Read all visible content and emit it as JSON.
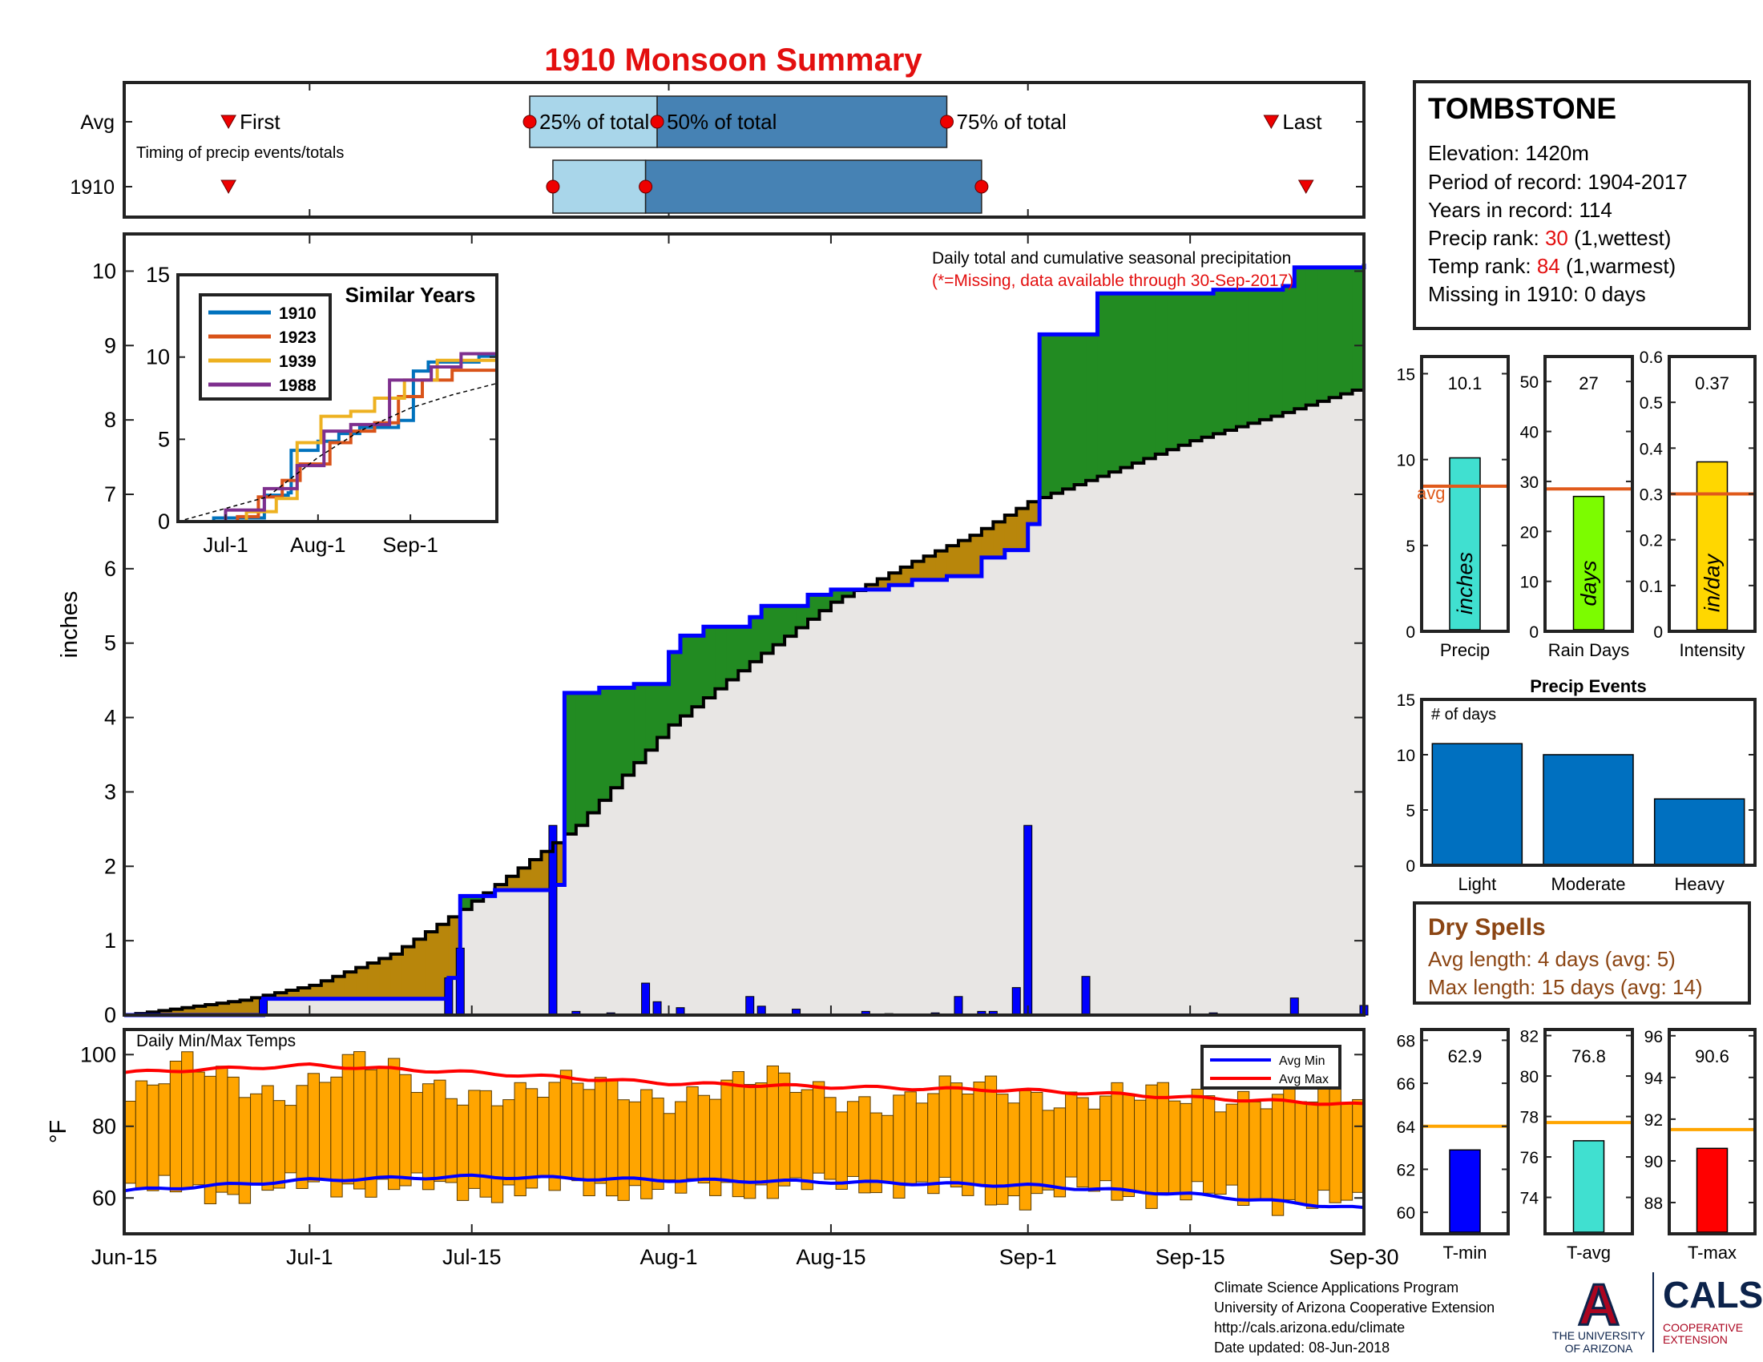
{
  "title": "1910 Monsoon Summary",
  "colors": {
    "title": "#e30f0f",
    "cum_line": "#0000ff",
    "avg_line": "#000000",
    "above_fill": "#228b22",
    "below_fill": "#b8860b",
    "base_fill": "#e8e6e4",
    "q_light": "#a9d6ea",
    "q_dark": "#4682b4",
    "marker": "#ee0000",
    "temp_bar": "#ffa500",
    "avg_bar_line": "#e05a1b",
    "temp_avg_line": "#ffa500",
    "precip_bar": "#40e0d0",
    "rain_bar": "#7cfc00",
    "int_bar": "#ffd700",
    "tmin_bar": "#0000ff",
    "tavg_bar": "#40e0d0",
    "tmax_bar": "#ff0000",
    "events_bar": "#0070c0",
    "dry_text": "#8b4513",
    "rank_red": "#e30f0f"
  },
  "timing": {
    "rows": [
      "Avg",
      "1910"
    ],
    "note": "Timing of precip events/totals",
    "labels": {
      "first": "First",
      "p25": "25% of total",
      "p50": "50% of total",
      "p75": "75% of total",
      "last": "Last"
    },
    "avg": {
      "first": "2023-06-24",
      "p25": "2023-07-20",
      "p50": "2023-07-31",
      "p75": "2023-08-25",
      "last": "2023-09-22"
    },
    "year": {
      "first": "2023-06-24",
      "p25": "2023-07-22",
      "p50": "2023-07-30",
      "p75": "2023-08-28",
      "last": "2023-09-25"
    }
  },
  "chart_data": [
    {
      "type": "line",
      "id": "cumulative_precip",
      "annotation": "Daily total and cumulative seasonal precipitation",
      "annotation2": "(*=Missing, data available through 30-Sep-2017)",
      "ylabel": "inches",
      "ylim": [
        0,
        10.5
      ],
      "yticks": [
        0,
        1,
        2,
        3,
        4,
        5,
        6,
        7,
        8,
        9,
        10
      ],
      "xticks": [
        {
          "label": "Jun-15",
          "date": "2023-06-15"
        },
        {
          "label": "Jul-1",
          "date": "2023-07-01"
        },
        {
          "label": "Jul-15",
          "date": "2023-07-15"
        },
        {
          "label": "Aug-1",
          "date": "2023-08-01"
        },
        {
          "label": "Aug-15",
          "date": "2023-08-15"
        },
        {
          "label": "Sep-1",
          "date": "2023-09-01"
        },
        {
          "label": "Sep-15",
          "date": "2023-09-15"
        },
        {
          "label": "Sep-30",
          "date": "2023-09-30"
        }
      ],
      "daily_precip": [
        {
          "date": "2023-06-27",
          "value": 0.22
        },
        {
          "date": "2023-07-13",
          "value": 0.5
        },
        {
          "date": "2023-07-14",
          "value": 0.9
        },
        {
          "date": "2023-07-22",
          "value": 2.55
        },
        {
          "date": "2023-07-24",
          "value": 0.05
        },
        {
          "date": "2023-07-27",
          "value": 0.03
        },
        {
          "date": "2023-07-30",
          "value": 0.43
        },
        {
          "date": "2023-07-31",
          "value": 0.18
        },
        {
          "date": "2023-08-02",
          "value": 0.1
        },
        {
          "date": "2023-08-08",
          "value": 0.25
        },
        {
          "date": "2023-08-09",
          "value": 0.12
        },
        {
          "date": "2023-08-12",
          "value": 0.08
        },
        {
          "date": "2023-08-18",
          "value": 0.05
        },
        {
          "date": "2023-08-20",
          "value": 0.02
        },
        {
          "date": "2023-08-24",
          "value": 0.03
        },
        {
          "date": "2023-08-26",
          "value": 0.25
        },
        {
          "date": "2023-08-28",
          "value": 0.05
        },
        {
          "date": "2023-08-29",
          "value": 0.05
        },
        {
          "date": "2023-08-31",
          "value": 0.37
        },
        {
          "date": "2023-09-01",
          "value": 2.55
        },
        {
          "date": "2023-09-06",
          "value": 0.52
        },
        {
          "date": "2023-09-17",
          "value": 0.03
        },
        {
          "date": "2023-09-24",
          "value": 0.23
        },
        {
          "date": "2023-09-30",
          "value": 0.13
        }
      ],
      "cumulative_1910": [
        {
          "date": "2023-06-15",
          "value": 0
        },
        {
          "date": "2023-06-27",
          "value": 0.22
        },
        {
          "date": "2023-07-13",
          "value": 0.5
        },
        {
          "date": "2023-07-14",
          "value": 1.6
        },
        {
          "date": "2023-07-17",
          "value": 1.68
        },
        {
          "date": "2023-07-22",
          "value": 1.75
        },
        {
          "date": "2023-07-23",
          "value": 4.33
        },
        {
          "date": "2023-07-26",
          "value": 4.4
        },
        {
          "date": "2023-07-29",
          "value": 4.45
        },
        {
          "date": "2023-08-01",
          "value": 4.88
        },
        {
          "date": "2023-08-02",
          "value": 5.1
        },
        {
          "date": "2023-08-04",
          "value": 5.22
        },
        {
          "date": "2023-08-08",
          "value": 5.35
        },
        {
          "date": "2023-08-09",
          "value": 5.5
        },
        {
          "date": "2023-08-13",
          "value": 5.65
        },
        {
          "date": "2023-08-15",
          "value": 5.72
        },
        {
          "date": "2023-08-20",
          "value": 5.78
        },
        {
          "date": "2023-08-22",
          "value": 5.85
        },
        {
          "date": "2023-08-25",
          "value": 5.9
        },
        {
          "date": "2023-08-28",
          "value": 6.15
        },
        {
          "date": "2023-08-30",
          "value": 6.25
        },
        {
          "date": "2023-09-01",
          "value": 6.6
        },
        {
          "date": "2023-09-02",
          "value": 9.15
        },
        {
          "date": "2023-09-07",
          "value": 9.7
        },
        {
          "date": "2023-09-17",
          "value": 9.75
        },
        {
          "date": "2023-09-23",
          "value": 9.8
        },
        {
          "date": "2023-09-24",
          "value": 10.05
        },
        {
          "date": "2023-09-30",
          "value": 10.1
        }
      ],
      "cumulative_avg": [
        {
          "date": "2023-06-15",
          "value": 0
        },
        {
          "date": "2023-06-25",
          "value": 0.2
        },
        {
          "date": "2023-07-01",
          "value": 0.4
        },
        {
          "date": "2023-07-08",
          "value": 0.82
        },
        {
          "date": "2023-07-14",
          "value": 1.42
        },
        {
          "date": "2023-07-21",
          "value": 2.2
        },
        {
          "date": "2023-07-24",
          "value": 2.55
        },
        {
          "date": "2023-08-01",
          "value": 3.9
        },
        {
          "date": "2023-08-08",
          "value": 4.75
        },
        {
          "date": "2023-08-15",
          "value": 5.55
        },
        {
          "date": "2023-08-22",
          "value": 6.1
        },
        {
          "date": "2023-08-27",
          "value": 6.45
        },
        {
          "date": "2023-09-01",
          "value": 6.9
        },
        {
          "date": "2023-09-08",
          "value": 7.3
        },
        {
          "date": "2023-09-15",
          "value": 7.72
        },
        {
          "date": "2023-09-22",
          "value": 8.05
        },
        {
          "date": "2023-09-30",
          "value": 8.45
        }
      ]
    },
    {
      "type": "line",
      "id": "similar_years",
      "title": "Similar Years",
      "ylim": [
        0,
        15
      ],
      "yticks": [
        0,
        5,
        10,
        15
      ],
      "xticks": [
        {
          "label": "Jul-1",
          "date": "2023-07-01"
        },
        {
          "label": "Aug-1",
          "date": "2023-08-01"
        },
        {
          "label": "Sep-1",
          "date": "2023-09-01"
        }
      ],
      "xlim": [
        "2023-06-15",
        "2023-09-30"
      ],
      "series": [
        {
          "name": "1910",
          "color": "#0072bd",
          "points": [
            [
              "2023-06-15",
              0
            ],
            [
              "2023-06-27",
              0.22
            ],
            [
              "2023-07-14",
              1.6
            ],
            [
              "2023-07-22",
              1.75
            ],
            [
              "2023-07-23",
              4.33
            ],
            [
              "2023-08-01",
              4.88
            ],
            [
              "2023-08-08",
              5.35
            ],
            [
              "2023-08-15",
              5.72
            ],
            [
              "2023-08-28",
              6.15
            ],
            [
              "2023-09-02",
              9.15
            ],
            [
              "2023-09-07",
              9.7
            ],
            [
              "2023-09-24",
              10.05
            ],
            [
              "2023-09-30",
              10.1
            ]
          ]
        },
        {
          "name": "1923",
          "color": "#d95319",
          "points": [
            [
              "2023-06-15",
              0
            ],
            [
              "2023-07-05",
              0.3
            ],
            [
              "2023-07-12",
              1.5
            ],
            [
              "2023-07-20",
              2.5
            ],
            [
              "2023-07-26",
              3.5
            ],
            [
              "2023-08-05",
              4.8
            ],
            [
              "2023-08-12",
              5.5
            ],
            [
              "2023-08-20",
              6.0
            ],
            [
              "2023-08-28",
              7.6
            ],
            [
              "2023-09-05",
              8.6
            ],
            [
              "2023-09-15",
              9.2
            ],
            [
              "2023-09-30",
              9.8
            ]
          ]
        },
        {
          "name": "1939",
          "color": "#edb120",
          "points": [
            [
              "2023-06-15",
              0
            ],
            [
              "2023-07-08",
              0.6
            ],
            [
              "2023-07-18",
              1.4
            ],
            [
              "2023-07-25",
              4.8
            ],
            [
              "2023-08-02",
              6.4
            ],
            [
              "2023-08-12",
              6.7
            ],
            [
              "2023-08-20",
              7.5
            ],
            [
              "2023-08-30",
              8.6
            ],
            [
              "2023-09-10",
              9.8
            ],
            [
              "2023-09-30",
              10.6
            ]
          ]
        },
        {
          "name": "1988",
          "color": "#7e2f8e",
          "points": [
            [
              "2023-06-15",
              0
            ],
            [
              "2023-07-01",
              0.7
            ],
            [
              "2023-07-14",
              2.0
            ],
            [
              "2023-07-25",
              3.4
            ],
            [
              "2023-08-03",
              5.5
            ],
            [
              "2023-08-12",
              5.9
            ],
            [
              "2023-08-25",
              8.6
            ],
            [
              "2023-09-08",
              9.4
            ],
            [
              "2023-09-18",
              10.2
            ],
            [
              "2023-09-30",
              10.4
            ]
          ]
        },
        {
          "name": "",
          "color": "#000000",
          "dashed": true,
          "points": [
            [
              "2023-06-15",
              0
            ],
            [
              "2023-07-15",
              1.5
            ],
            [
              "2023-08-01",
              3.9
            ],
            [
              "2023-08-15",
              5.5
            ],
            [
              "2023-09-01",
              6.9
            ],
            [
              "2023-09-15",
              7.7
            ],
            [
              "2023-09-30",
              8.4
            ]
          ]
        }
      ]
    },
    {
      "type": "bar",
      "id": "daily_temps",
      "label": "Daily Min/Max Temps",
      "ylabel": "°F",
      "ylim": [
        50,
        107
      ],
      "yticks": [
        60,
        80,
        100
      ],
      "legend": [
        "Avg Min",
        "Avg Max"
      ],
      "legend_position": "top-right",
      "max_curve": [
        [
          "2023-06-15",
          95
        ],
        [
          "2023-07-01",
          97
        ],
        [
          "2023-07-15",
          95
        ],
        [
          "2023-08-01",
          92
        ],
        [
          "2023-08-15",
          91
        ],
        [
          "2023-09-01",
          90
        ],
        [
          "2023-09-15",
          88
        ],
        [
          "2023-09-30",
          86
        ]
      ],
      "min_curve": [
        [
          "2023-06-15",
          62
        ],
        [
          "2023-07-01",
          65
        ],
        [
          "2023-07-15",
          66
        ],
        [
          "2023-08-01",
          65
        ],
        [
          "2023-08-15",
          64.5
        ],
        [
          "2023-09-01",
          63.5
        ],
        [
          "2023-09-15",
          61
        ],
        [
          "2023-09-30",
          57
        ]
      ],
      "max_keys": [
        [
          "2023-06-15",
          87
        ],
        [
          "2023-06-20",
          96
        ],
        [
          "2023-06-28",
          90
        ],
        [
          "2023-07-05",
          97
        ],
        [
          "2023-07-10",
          92
        ],
        [
          "2023-07-20",
          89
        ],
        [
          "2023-07-25",
          91
        ],
        [
          "2023-08-01",
          89
        ],
        [
          "2023-08-10",
          92
        ],
        [
          "2023-08-20",
          87
        ],
        [
          "2023-08-28",
          90
        ],
        [
          "2023-09-05",
          89
        ],
        [
          "2023-09-15",
          87
        ],
        [
          "2023-09-22",
          90
        ],
        [
          "2023-09-30",
          86
        ]
      ],
      "min_keys": [
        [
          "2023-06-15",
          62
        ],
        [
          "2023-06-25",
          62
        ],
        [
          "2023-07-05",
          64
        ],
        [
          "2023-07-15",
          62
        ],
        [
          "2023-07-25",
          63
        ],
        [
          "2023-08-01",
          62
        ],
        [
          "2023-08-10",
          63
        ],
        [
          "2023-08-20",
          64
        ],
        [
          "2023-08-30",
          60
        ],
        [
          "2023-09-05",
          62
        ],
        [
          "2023-09-15",
          61
        ],
        [
          "2023-09-30",
          58
        ]
      ]
    },
    {
      "type": "bar",
      "id": "precip_total",
      "xlabel": "Precip",
      "value": 10.1,
      "value_label": "10.1",
      "avg": 8.45,
      "avg_label": "avg",
      "ylim": [
        0,
        16
      ],
      "yticks": [
        0,
        5,
        10,
        15
      ],
      "bar_text": "inches"
    },
    {
      "type": "bar",
      "id": "rain_days",
      "xlabel": "Rain Days",
      "value": 27,
      "value_label": "27",
      "avg": 28.5,
      "ylim": [
        0,
        55
      ],
      "yticks": [
        0,
        10,
        20,
        30,
        40,
        50
      ],
      "bar_text": "days"
    },
    {
      "type": "bar",
      "id": "intensity",
      "xlabel": "Intensity",
      "value": 0.37,
      "value_label": "0.37",
      "avg": 0.3,
      "ylim": [
        0,
        0.6
      ],
      "yticks": [
        0,
        0.1,
        0.2,
        0.3,
        0.4,
        0.5,
        0.6
      ],
      "bar_text": "in/day"
    },
    {
      "type": "bar",
      "id": "precip_events",
      "title": "Precip Events",
      "ylabel_inside": "# of days",
      "categories": [
        "Light",
        "Moderate",
        "Heavy"
      ],
      "values": [
        11,
        10,
        6
      ],
      "ylim": [
        0,
        15
      ],
      "yticks": [
        0,
        5,
        10,
        15
      ]
    },
    {
      "type": "bar",
      "id": "tmin",
      "xlabel": "T-min",
      "value": 62.9,
      "value_label": "62.9",
      "avg": 64,
      "ylim": [
        59,
        68.5
      ],
      "yticks": [
        60,
        62,
        64,
        66,
        68
      ]
    },
    {
      "type": "bar",
      "id": "tavg",
      "xlabel": "T-avg",
      "value": 76.8,
      "value_label": "76.8",
      "avg": 77.7,
      "ylim": [
        72.2,
        82.3
      ],
      "yticks": [
        74,
        76,
        78,
        80,
        82
      ]
    },
    {
      "type": "bar",
      "id": "tmax",
      "xlabel": "T-max",
      "value": 90.6,
      "value_label": "90.6",
      "avg": 91.5,
      "ylim": [
        86.5,
        96.3
      ],
      "yticks": [
        88,
        90,
        92,
        94,
        96
      ]
    }
  ],
  "station": {
    "name": "TOMBSTONE",
    "elevation": "Elevation: 1420m",
    "period": "Period of record: 1904-2017",
    "years": "Years in record: 114",
    "precip_rank_prefix": "Precip rank: ",
    "precip_rank": "30",
    "precip_rank_suffix": " (1,wettest)",
    "temp_rank_prefix": "Temp rank: ",
    "temp_rank": "84",
    "temp_rank_suffix": " (1,warmest)",
    "missing": "Missing in 1910: 0 days"
  },
  "dry_spells": {
    "title": "Dry Spells",
    "avg_length": "Avg length: 4 days (avg: 5)",
    "max_length": "Max length: 15 days (avg: 14)"
  },
  "credits": {
    "line1": "Climate Science Applications Program",
    "line2": "University of Arizona Cooperative Extension",
    "line3": "http://cals.arizona.edu/climate",
    "line4": "Date updated: 08-Jun-2018"
  },
  "logos": {
    "ua_letter": "A",
    "ua_line1": "THE UNIVERSITY",
    "ua_line2": "OF ARIZONA",
    "cals": "CALS",
    "cals_line1": "COOPERATIVE",
    "cals_line2": "EXTENSION"
  }
}
